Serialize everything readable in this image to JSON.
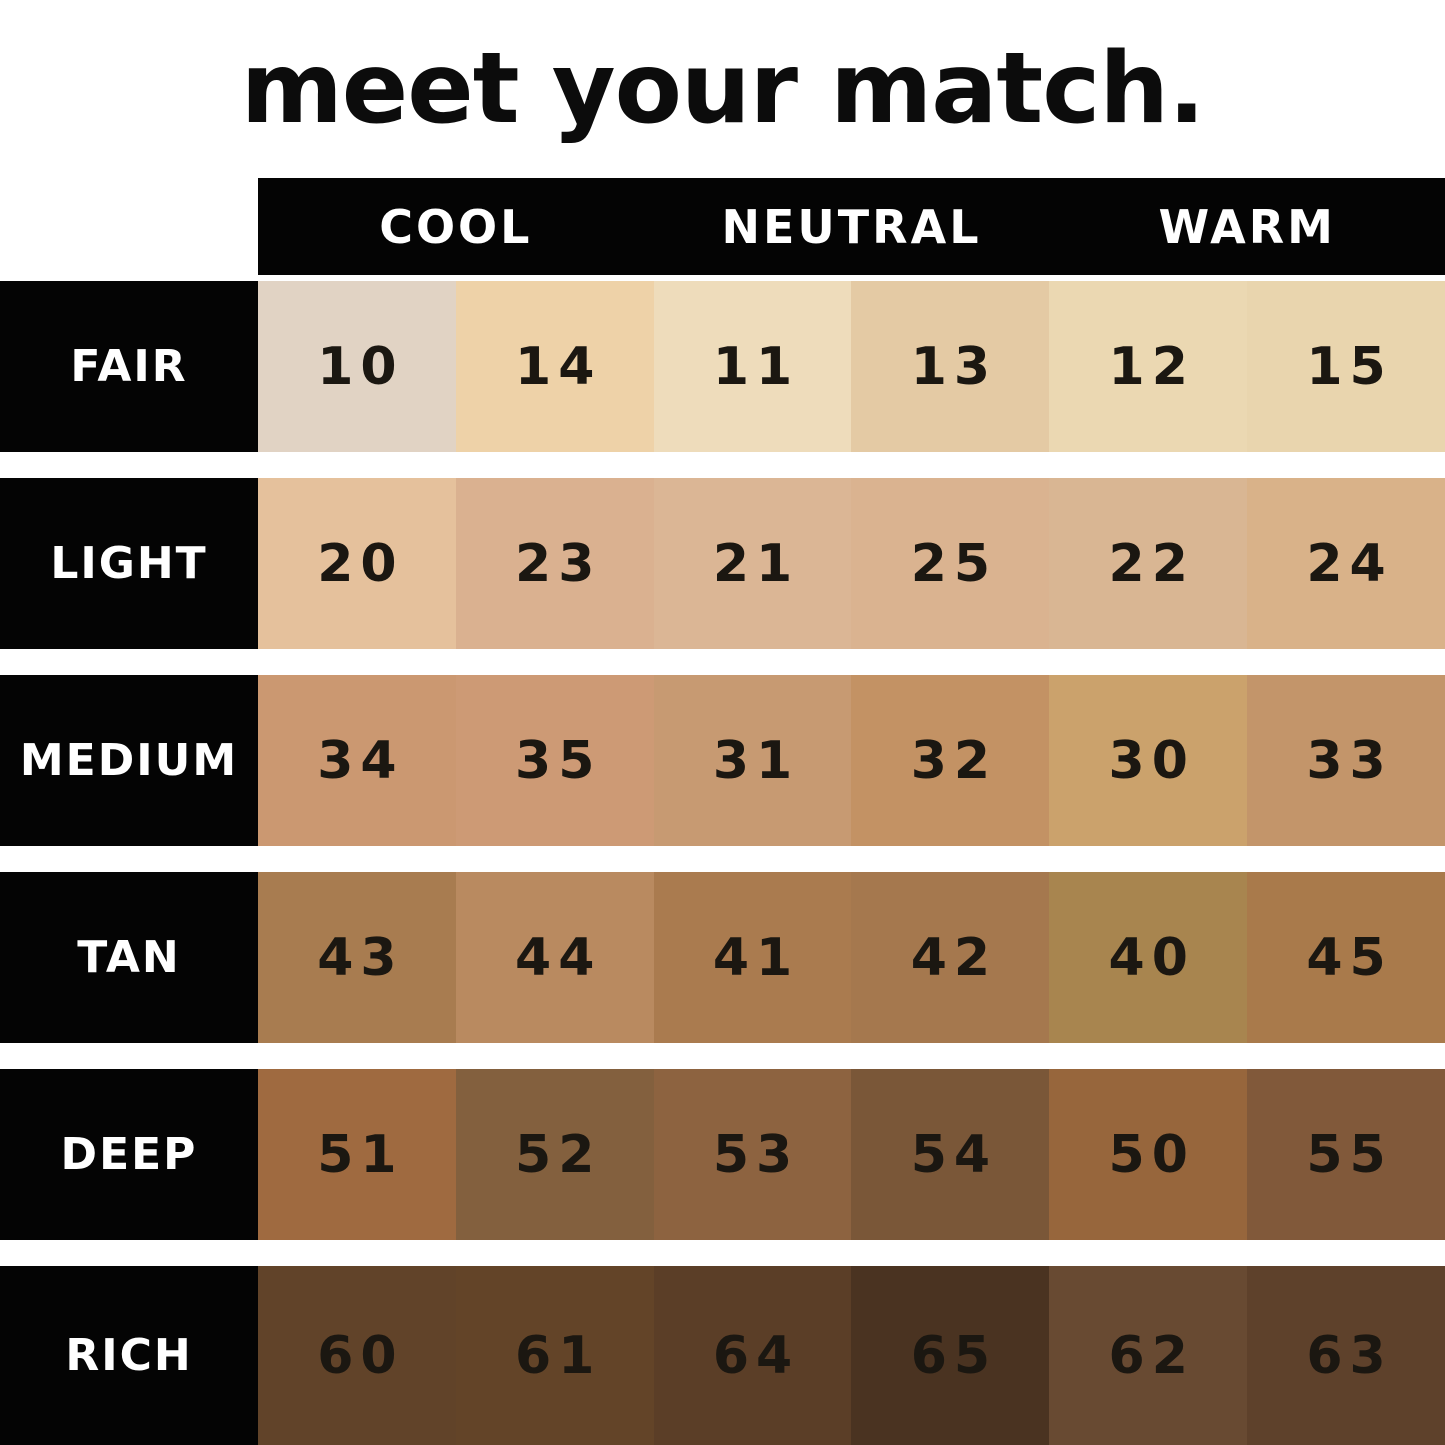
{
  "title": "meet your match.",
  "colors": {
    "background": "#ffffff",
    "bar": "#040404",
    "label_text": "#ffffff",
    "number_text": "#1b1711",
    "title_text": "#0c0c0c"
  },
  "chart_data": {
    "type": "table",
    "title": "meet your match.",
    "column_groups": [
      "COOL",
      "NEUTRAL",
      "WARM"
    ],
    "columns_per_group": 2,
    "row_labels": [
      "FAIR",
      "LIGHT",
      "MEDIUM",
      "TAN",
      "DEEP",
      "RICH"
    ],
    "rows": [
      {
        "label": "FAIR",
        "shades": [
          {
            "number": "10",
            "color": "#e1d3c4"
          },
          {
            "number": "14",
            "color": "#eed2a8"
          },
          {
            "number": "11",
            "color": "#eedcbb"
          },
          {
            "number": "13",
            "color": "#e4caa4"
          },
          {
            "number": "12",
            "color": "#ebd8b2"
          },
          {
            "number": "15",
            "color": "#e9d5ae"
          }
        ]
      },
      {
        "label": "LIGHT",
        "shades": [
          {
            "number": "20",
            "color": "#e5c19c"
          },
          {
            "number": "23",
            "color": "#dab190"
          },
          {
            "number": "21",
            "color": "#dbb695"
          },
          {
            "number": "25",
            "color": "#dab390"
          },
          {
            "number": "22",
            "color": "#d9b693"
          },
          {
            "number": "24",
            "color": "#d9b289"
          }
        ]
      },
      {
        "label": "MEDIUM",
        "shades": [
          {
            "number": "34",
            "color": "#cb9871"
          },
          {
            "number": "35",
            "color": "#cd9a75"
          },
          {
            "number": "31",
            "color": "#c79a72"
          },
          {
            "number": "32",
            "color": "#c39264"
          },
          {
            "number": "30",
            "color": "#cba26c"
          },
          {
            "number": "33",
            "color": "#c3956a"
          }
        ]
      },
      {
        "label": "TAN",
        "shades": [
          {
            "number": "43",
            "color": "#a87c50"
          },
          {
            "number": "44",
            "color": "#b98a60"
          },
          {
            "number": "41",
            "color": "#aa7b4f"
          },
          {
            "number": "42",
            "color": "#a5784e"
          },
          {
            "number": "40",
            "color": "#a8854f"
          },
          {
            "number": "45",
            "color": "#a97a4b"
          }
        ]
      },
      {
        "label": "DEEP",
        "shades": [
          {
            "number": "51",
            "color": "#9f6a40"
          },
          {
            "number": "52",
            "color": "#83603e"
          },
          {
            "number": "53",
            "color": "#8d6340"
          },
          {
            "number": "54",
            "color": "#7a5738"
          },
          {
            "number": "50",
            "color": "#97663c"
          },
          {
            "number": "55",
            "color": "#81593a"
          }
        ]
      },
      {
        "label": "RICH",
        "shades": [
          {
            "number": "60",
            "color": "#614329"
          },
          {
            "number": "61",
            "color": "#634428"
          },
          {
            "number": "64",
            "color": "#5b3e27"
          },
          {
            "number": "65",
            "color": "#4a3321"
          },
          {
            "number": "62",
            "color": "#684a32"
          },
          {
            "number": "63",
            "color": "#5e412b"
          }
        ]
      }
    ]
  }
}
